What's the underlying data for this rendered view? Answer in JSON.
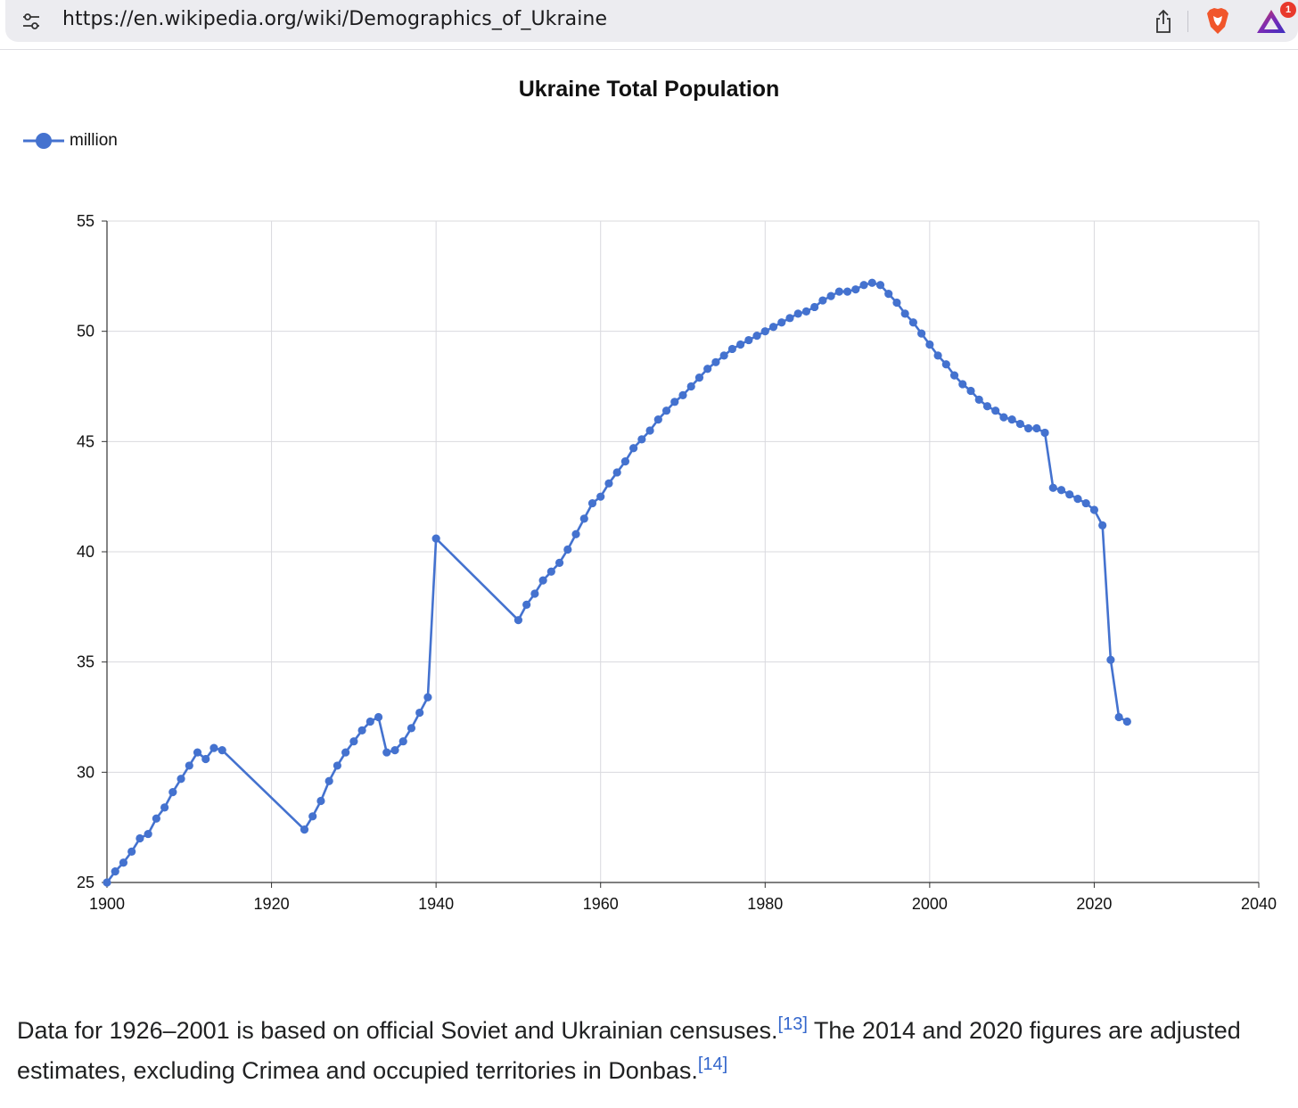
{
  "browser": {
    "url": "https://en.wikipedia.org/wiki/Demographics_of_Ukraine",
    "badge_count": "1",
    "icons": [
      "site-settings-icon",
      "share-icon",
      "brave-shield-icon",
      "brave-rewards-icon"
    ]
  },
  "chart_data": {
    "type": "line",
    "title": "Ukraine Total Population",
    "xlabel": "",
    "ylabel": "",
    "xlim": [
      1900,
      2040
    ],
    "ylim": [
      25,
      55
    ],
    "x_ticks": [
      "1900",
      "1920",
      "1940",
      "1960",
      "1980",
      "2000",
      "2020",
      "2040"
    ],
    "y_ticks": [
      "25",
      "30",
      "35",
      "40",
      "45",
      "50",
      "55"
    ],
    "grid": true,
    "legend_placement": "top-left",
    "color": "#4472cf",
    "series": [
      {
        "name": "million",
        "points": [
          [
            1900,
            25.0
          ],
          [
            1901,
            25.5
          ],
          [
            1902,
            25.9
          ],
          [
            1903,
            26.4
          ],
          [
            1904,
            27.0
          ],
          [
            1905,
            27.2
          ],
          [
            1906,
            27.9
          ],
          [
            1907,
            28.4
          ],
          [
            1908,
            29.1
          ],
          [
            1909,
            29.7
          ],
          [
            1910,
            30.3
          ],
          [
            1911,
            30.9
          ],
          [
            1912,
            30.6
          ],
          [
            1913,
            31.1
          ],
          [
            1914,
            31.0
          ],
          [
            1924,
            27.4
          ],
          [
            1925,
            28.0
          ],
          [
            1926,
            28.7
          ],
          [
            1927,
            29.6
          ],
          [
            1928,
            30.3
          ],
          [
            1929,
            30.9
          ],
          [
            1930,
            31.4
          ],
          [
            1931,
            31.9
          ],
          [
            1932,
            32.3
          ],
          [
            1933,
            32.5
          ],
          [
            1934,
            30.9
          ],
          [
            1935,
            31.0
          ],
          [
            1936,
            31.4
          ],
          [
            1937,
            32.0
          ],
          [
            1938,
            32.7
          ],
          [
            1939,
            33.4
          ],
          [
            1940,
            40.6
          ],
          [
            1950,
            36.9
          ],
          [
            1951,
            37.6
          ],
          [
            1952,
            38.1
          ],
          [
            1953,
            38.7
          ],
          [
            1954,
            39.1
          ],
          [
            1955,
            39.5
          ],
          [
            1956,
            40.1
          ],
          [
            1957,
            40.8
          ],
          [
            1958,
            41.5
          ],
          [
            1959,
            42.2
          ],
          [
            1960,
            42.5
          ],
          [
            1961,
            43.1
          ],
          [
            1962,
            43.6
          ],
          [
            1963,
            44.1
          ],
          [
            1964,
            44.7
          ],
          [
            1965,
            45.1
          ],
          [
            1966,
            45.5
          ],
          [
            1967,
            46.0
          ],
          [
            1968,
            46.4
          ],
          [
            1969,
            46.8
          ],
          [
            1970,
            47.1
          ],
          [
            1971,
            47.5
          ],
          [
            1972,
            47.9
          ],
          [
            1973,
            48.3
          ],
          [
            1974,
            48.6
          ],
          [
            1975,
            48.9
          ],
          [
            1976,
            49.2
          ],
          [
            1977,
            49.4
          ],
          [
            1978,
            49.6
          ],
          [
            1979,
            49.8
          ],
          [
            1980,
            50.0
          ],
          [
            1981,
            50.2
          ],
          [
            1982,
            50.4
          ],
          [
            1983,
            50.6
          ],
          [
            1984,
            50.8
          ],
          [
            1985,
            50.9
          ],
          [
            1986,
            51.1
          ],
          [
            1987,
            51.4
          ],
          [
            1988,
            51.6
          ],
          [
            1989,
            51.8
          ],
          [
            1990,
            51.8
          ],
          [
            1991,
            51.9
          ],
          [
            1992,
            52.1
          ],
          [
            1993,
            52.2
          ],
          [
            1994,
            52.1
          ],
          [
            1995,
            51.7
          ],
          [
            1996,
            51.3
          ],
          [
            1997,
            50.8
          ],
          [
            1998,
            50.4
          ],
          [
            1999,
            49.9
          ],
          [
            2000,
            49.4
          ],
          [
            2001,
            48.9
          ],
          [
            2002,
            48.5
          ],
          [
            2003,
            48.0
          ],
          [
            2004,
            47.6
          ],
          [
            2005,
            47.3
          ],
          [
            2006,
            46.9
          ],
          [
            2007,
            46.6
          ],
          [
            2008,
            46.4
          ],
          [
            2009,
            46.1
          ],
          [
            2010,
            46.0
          ],
          [
            2011,
            45.8
          ],
          [
            2012,
            45.6
          ],
          [
            2013,
            45.6
          ],
          [
            2014,
            45.4
          ],
          [
            2015,
            42.9
          ],
          [
            2016,
            42.8
          ],
          [
            2017,
            42.6
          ],
          [
            2018,
            42.4
          ],
          [
            2019,
            42.2
          ],
          [
            2020,
            41.9
          ],
          [
            2021,
            41.2
          ],
          [
            2022,
            35.1
          ],
          [
            2023,
            32.5
          ],
          [
            2024,
            32.3
          ]
        ]
      }
    ]
  },
  "caption": {
    "part1": "Data for 1926–2001 is based on official Soviet and Ukrainian censuses.",
    "cite1": "[13]",
    "part2": " The 2014 and 2020 figures are adjusted estimates, excluding Crimea and occupied territories in Donbas.",
    "cite2": "[14]"
  }
}
